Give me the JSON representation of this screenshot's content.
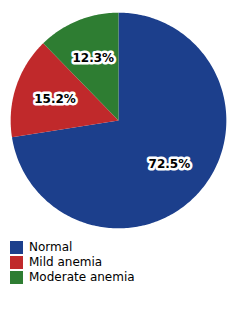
{
  "chart_data": {
    "type": "pie",
    "categories": [
      "Normal",
      "Mild anemia",
      "Moderate anemia"
    ],
    "values": [
      72.5,
      15.2,
      12.3
    ],
    "value_labels": [
      "72.5%",
      "15.2%",
      "12.3%"
    ],
    "colors": [
      "#1c3f8c",
      "#c0292b",
      "#2e7d32"
    ],
    "data_labels": true,
    "legend": "lower left"
  }
}
